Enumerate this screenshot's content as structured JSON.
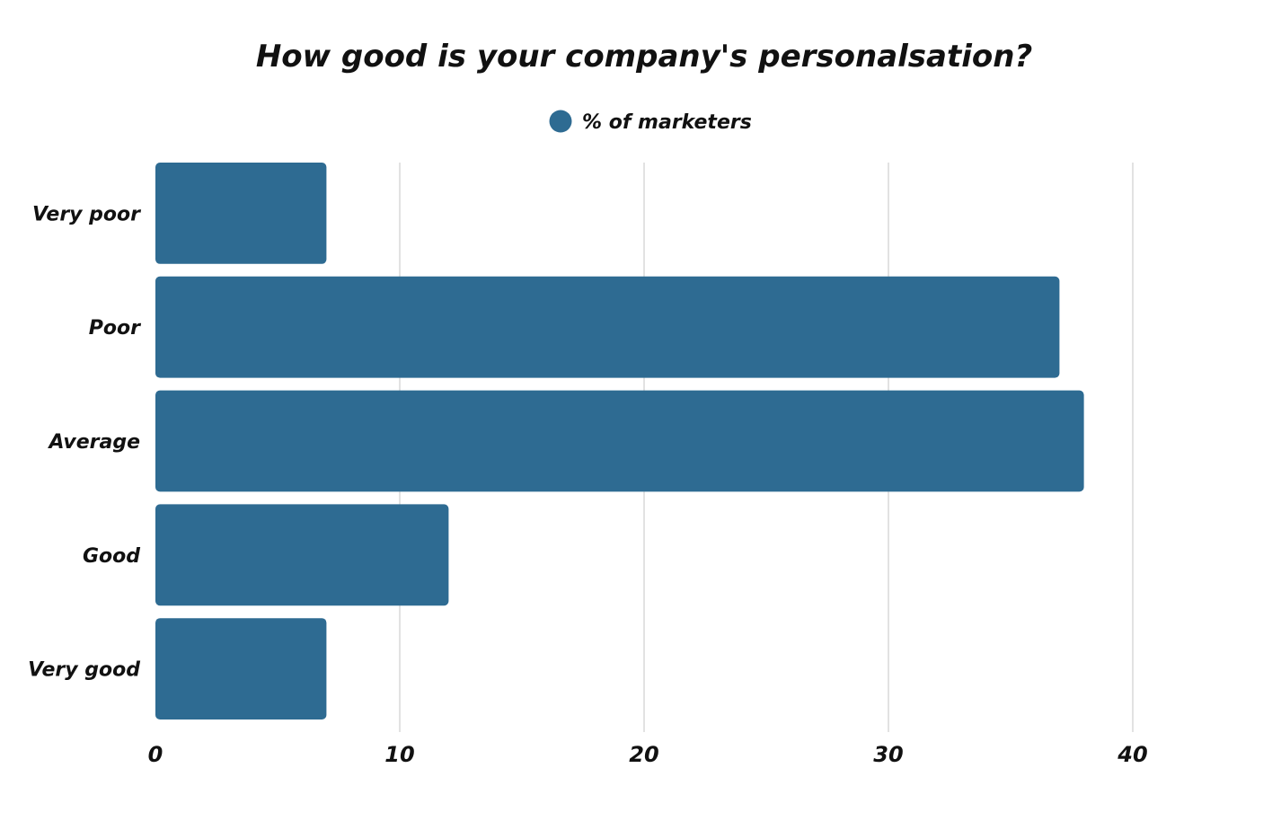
{
  "chart_data": {
    "type": "bar",
    "orientation": "horizontal",
    "title": "How good is your company's personalsation?",
    "categories": [
      "Very poor",
      "Poor",
      "Average",
      "Good",
      "Very good"
    ],
    "series": [
      {
        "name": "% of marketers",
        "values": [
          7,
          37,
          38,
          12,
          7
        ],
        "color": "#2e6b92"
      }
    ],
    "xlim": [
      0,
      40
    ],
    "xticks": [
      "0",
      "10",
      "20",
      "30",
      "40"
    ],
    "grid": true,
    "legend": "top-center"
  }
}
